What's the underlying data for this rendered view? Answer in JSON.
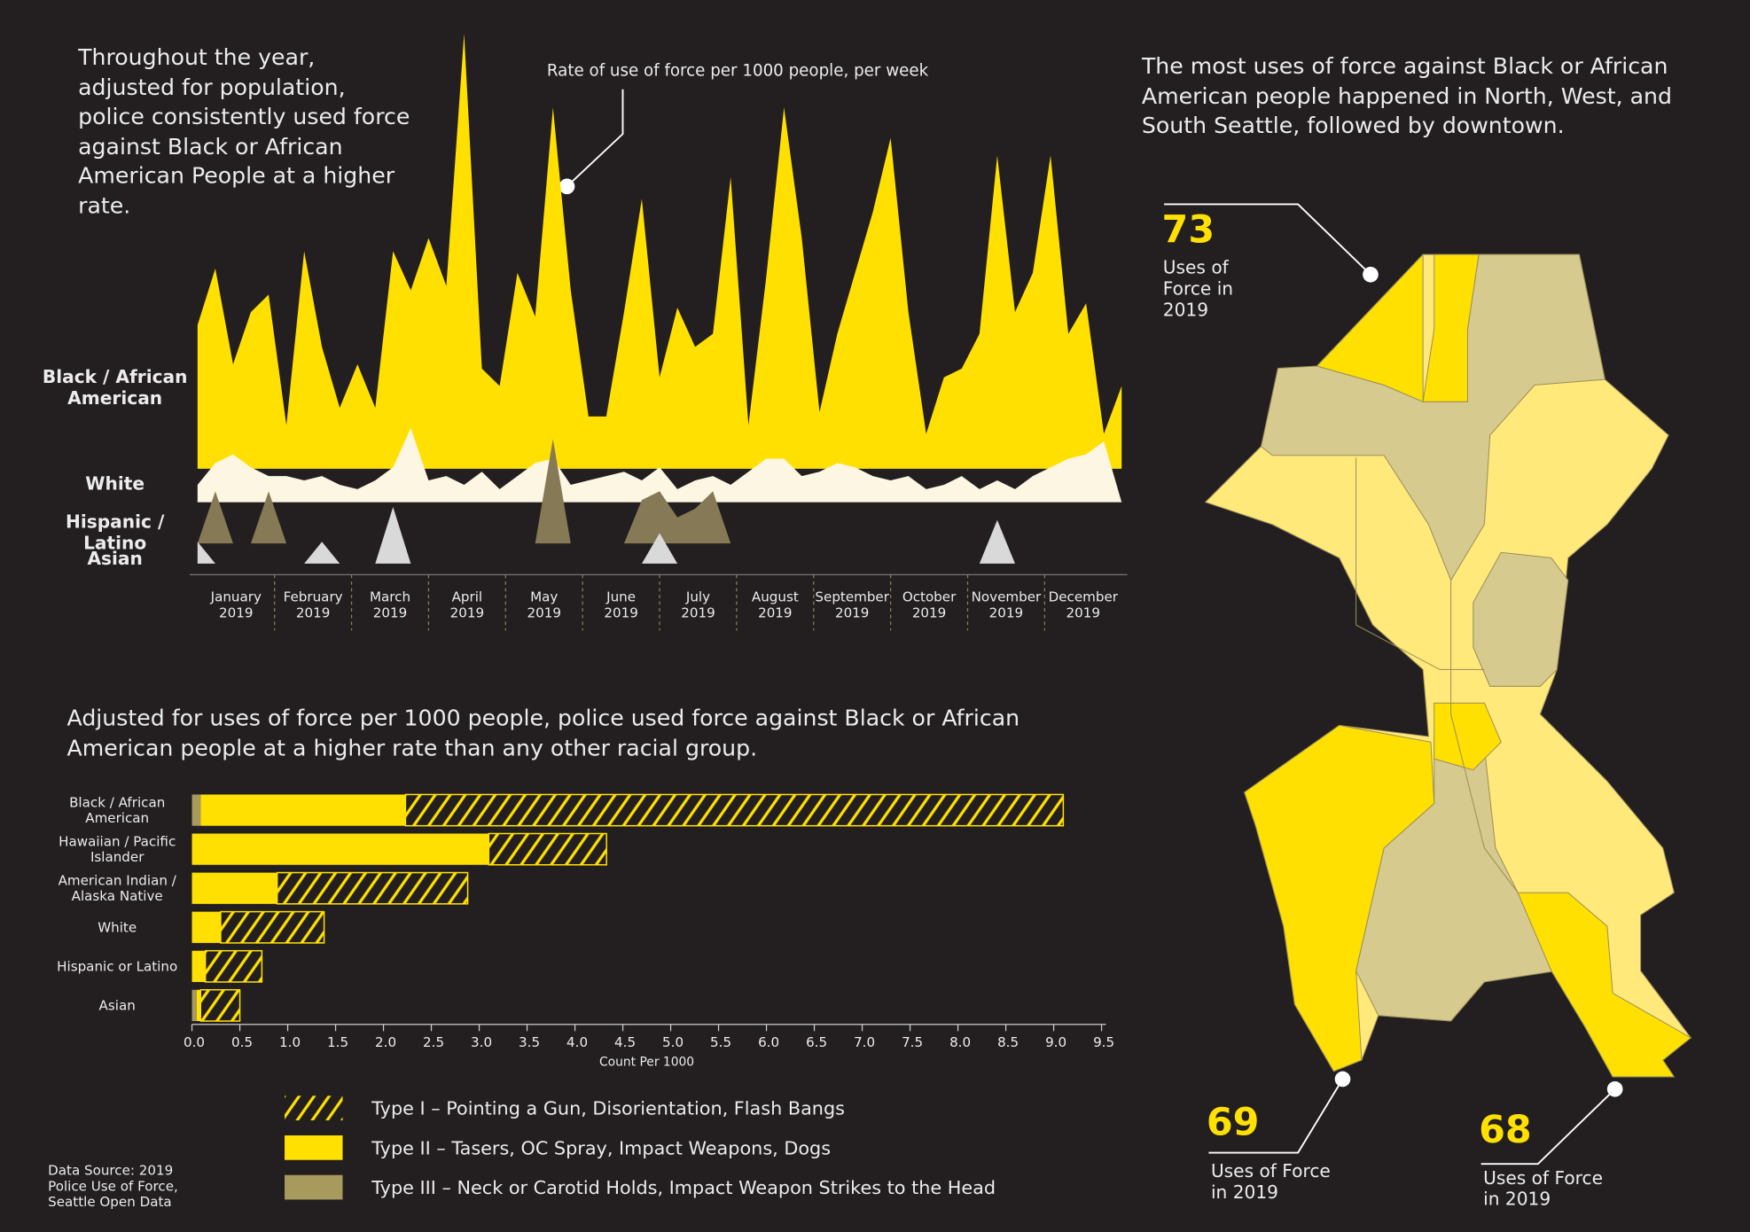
{
  "chart_data": [
    {
      "type": "area",
      "title": "Throughout the year, adjusted for population, police consistently used force against Black or African American People at a higher rate.",
      "annotation": "Rate of use of force per 1000 people, per week",
      "months": [
        "January 2019",
        "February 2019",
        "March 2019",
        "April 2019",
        "May 2019",
        "June 2019",
        "July 2019",
        "August 2019",
        "September 2019",
        "October 2019",
        "November 2019",
        "December 2019"
      ],
      "ylim": [
        0,
        10
      ],
      "series": [
        {
          "name": "Black / African American",
          "color": "#ffe000",
          "values": [
            3.3,
            4.6,
            2.4,
            3.6,
            4.0,
            1.0,
            5.0,
            2.8,
            1.4,
            2.4,
            1.4,
            5.0,
            4.1,
            5.3,
            4.2,
            10.0,
            2.3,
            1.9,
            4.5,
            3.5,
            8.3,
            4.1,
            1.2,
            1.2,
            3.6,
            6.2,
            2.1,
            3.7,
            2.8,
            3.1,
            6.7,
            1.0,
            4.4,
            8.3,
            5.3,
            1.3,
            3.1,
            4.5,
            5.9,
            7.6,
            3.6,
            0.8,
            2.1,
            2.3,
            3.1,
            7.2,
            3.6,
            4.5,
            7.2,
            3.1,
            3.8,
            0.8,
            1.9
          ]
        },
        {
          "name": "White",
          "color": "#fdf6e3",
          "values": [
            0.4,
            0.9,
            1.1,
            0.8,
            0.6,
            0.6,
            0.5,
            0.6,
            0.4,
            0.3,
            0.5,
            0.8,
            1.7,
            0.5,
            0.6,
            0.4,
            0.7,
            0.3,
            0.6,
            0.9,
            1.0,
            0.4,
            0.5,
            0.6,
            0.7,
            0.5,
            0.8,
            0.3,
            0.5,
            0.6,
            0.4,
            0.7,
            1.0,
            1.0,
            0.6,
            0.7,
            0.9,
            0.8,
            0.6,
            0.5,
            0.6,
            0.3,
            0.4,
            0.6,
            0.3,
            0.5,
            0.3,
            0.6,
            0.8,
            1.0,
            1.1,
            1.4,
            0.0
          ]
        },
        {
          "name": "Hispanic / Latino",
          "color": "#857a55",
          "values": [
            0,
            1.2,
            0,
            0,
            1.2,
            0,
            0,
            0,
            0,
            0,
            0,
            0,
            0,
            0,
            0,
            0,
            0,
            0,
            0,
            0,
            2.4,
            0,
            0,
            0,
            0,
            1.0,
            1.2,
            0.6,
            0.8,
            1.2,
            0,
            0,
            0,
            0,
            0,
            0,
            0,
            0,
            0,
            0,
            0,
            0,
            0,
            0,
            0,
            0,
            0,
            0,
            0,
            0,
            0,
            0,
            0
          ]
        },
        {
          "name": "Asian",
          "color": "#d9d9d9",
          "values": [
            0.5,
            0,
            0,
            0,
            0,
            0,
            0,
            0.5,
            0,
            0,
            0,
            1.3,
            0,
            0,
            0,
            0,
            0,
            0,
            0,
            0,
            0,
            0,
            0,
            0,
            0,
            0,
            0.7,
            0,
            0,
            0,
            0,
            0,
            0,
            0,
            0,
            0,
            0,
            0,
            0,
            0,
            0,
            0,
            0,
            0,
            0,
            1.0,
            0,
            0,
            0,
            0,
            0,
            0,
            0
          ]
        }
      ]
    },
    {
      "type": "bar",
      "orientation": "horizontal",
      "stacked": true,
      "title": "Adjusted for uses of force per 1000 people, police used force against Black or African American people at a higher rate than any other racial group.",
      "xlabel": "Count Per 1000",
      "categories": [
        "Black / African American",
        "Hawaiian / Pacific Islander",
        "American Indian / Alaska Native",
        "White",
        "Hispanic or Latino",
        "Asian"
      ],
      "series": [
        {
          "name": "Type I – Pointing a Gun, Disorientation, Flash Bangs",
          "color": "#ffe000",
          "pattern": "hatch",
          "values": [
            6.87,
            1.23,
            1.99,
            1.08,
            0.59,
            0.41
          ]
        },
        {
          "name": "Type II – Tasers, OC Spray, Impact Weapons, Dogs",
          "color": "#ffe000",
          "values": [
            2.14,
            3.1,
            0.89,
            0.3,
            0.14,
            0.04
          ]
        },
        {
          "name": "Type III – Neck or Carotid Holds, Impact Weapon Strikes to the Head",
          "color": "#a89a5c",
          "values": [
            0.09,
            0,
            0,
            0,
            0,
            0.05
          ]
        }
      ],
      "xlim": [
        0,
        9.5
      ],
      "xticks": [
        {
          "value": 0,
          "label": "0.0"
        },
        0.5,
        {
          "value": 1,
          "label": "1.0"
        },
        1.5,
        {
          "value": 2,
          "label": "2.0"
        },
        2.5,
        {
          "value": 3,
          "label": "3.0"
        },
        3.5,
        {
          "value": 4,
          "label": "4.0"
        },
        4.5,
        {
          "value": 5,
          "label": "5.0"
        },
        5.5,
        {
          "value": 6,
          "label": "6.0"
        },
        6.5,
        {
          "value": 7,
          "label": "7.0"
        },
        7.5,
        {
          "value": 8,
          "label": "8.0"
        },
        8.5,
        {
          "value": 9,
          "label": "9.0"
        },
        9.5
      ]
    }
  ],
  "map": {
    "title": "The most uses of force against Black or African American people happened in North, West, and South Seattle, followed by downtown.",
    "callouts": [
      {
        "value": 73,
        "label": "Uses of Force in 2019"
      },
      {
        "value": 69,
        "label": "Uses of Force in 2019"
      },
      {
        "value": 68,
        "label": "Uses of Force in 2019"
      }
    ]
  },
  "source": "Data Source: 2019 Police Use of Force, Seattle Open Data"
}
